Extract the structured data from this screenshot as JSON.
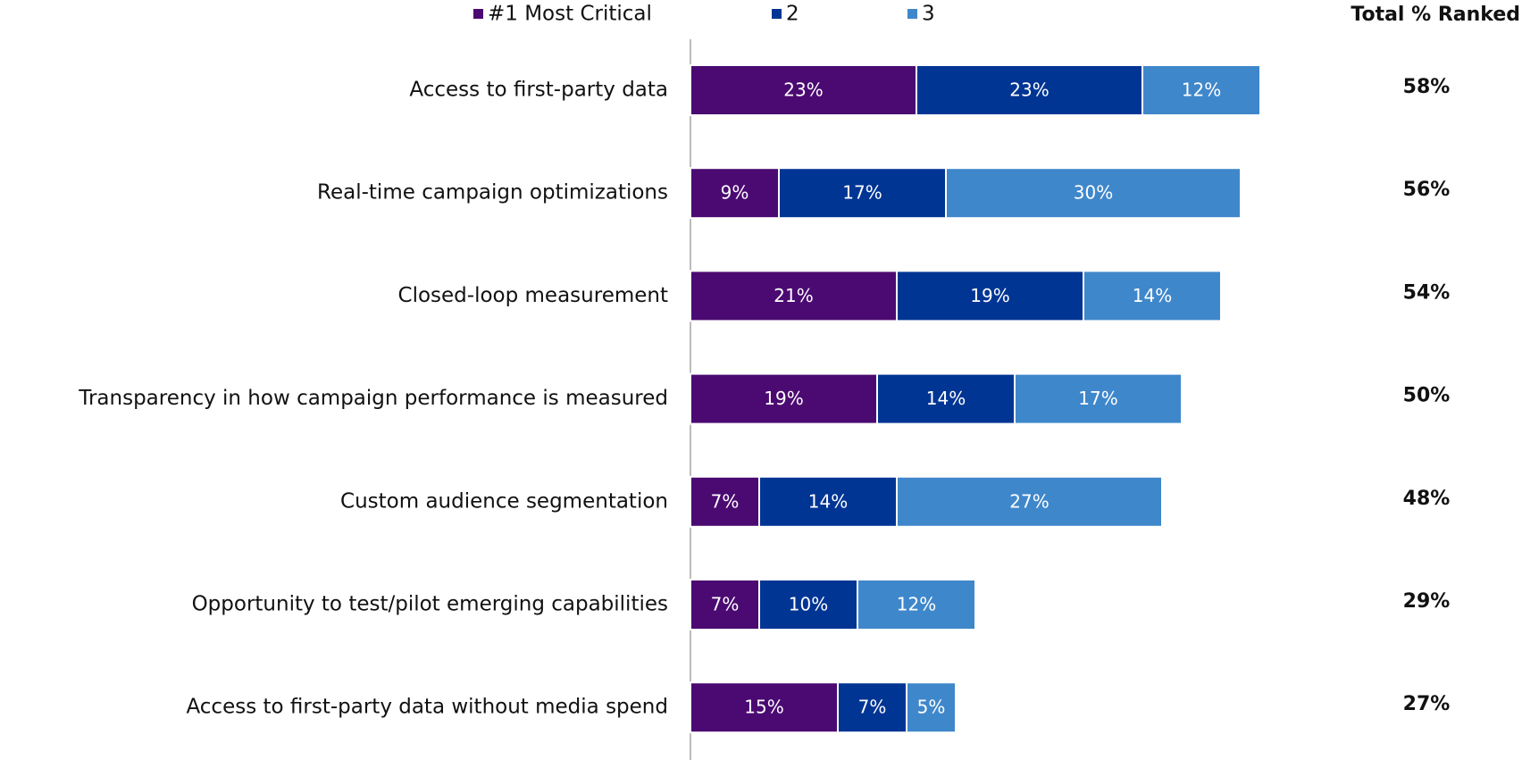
{
  "chart_data": {
    "type": "stacked-bar-horizontal",
    "categories": [
      "Access to first-party data",
      "Real-time campaign optimizations",
      "Closed-loop measurement",
      "Transparency in how campaign performance is measured",
      "Custom audience segmentation",
      "Opportunity to test/pilot emerging capabilities",
      "Access to first-party data without media spend"
    ],
    "series": [
      {
        "name": "#1 Most Critical",
        "color": "#4b0a72",
        "values": [
          23,
          9,
          21,
          19,
          7,
          7,
          15
        ],
        "value_labels": [
          "23%",
          "9%",
          "21%",
          "19%",
          "7%",
          "7%",
          "15%"
        ]
      },
      {
        "name": "2",
        "color": "#003594",
        "values": [
          23,
          17,
          19,
          14,
          14,
          10,
          7
        ],
        "value_labels": [
          "23%",
          "17%",
          "19%",
          "14%",
          "14%",
          "10%",
          "7%"
        ]
      },
      {
        "name": "3",
        "color": "#3f87cb",
        "values": [
          12,
          30,
          14,
          17,
          27,
          12,
          5
        ],
        "value_labels": [
          "12%",
          "30%",
          "14%",
          "17%",
          "27%",
          "12%",
          "5%"
        ]
      }
    ],
    "totals": {
      "title": "Total % Ranked",
      "values": [
        58,
        56,
        54,
        50,
        48,
        29,
        27
      ],
      "value_labels": [
        "58%",
        "56%",
        "54%",
        "50%",
        "48%",
        "29%",
        "27%"
      ]
    },
    "xlim": [
      0,
      80
    ]
  }
}
